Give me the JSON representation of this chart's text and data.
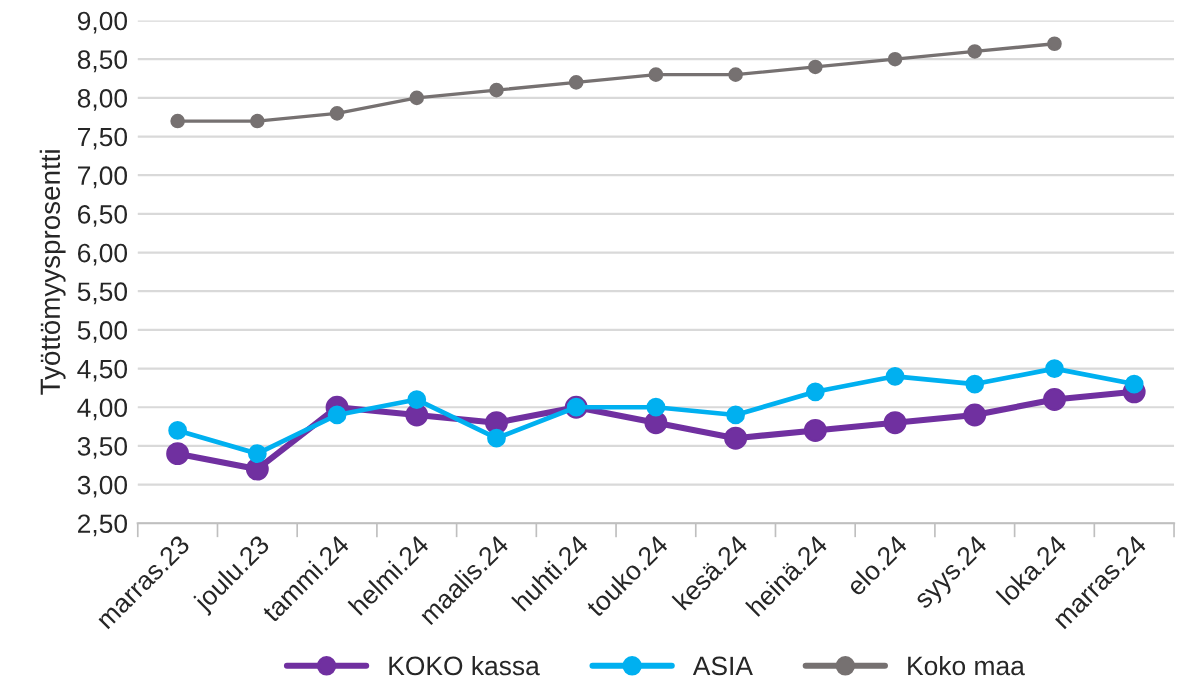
{
  "chart_data": {
    "type": "line",
    "ylabel": "Työttömyysprosentti",
    "categories": [
      "marras.23",
      "joulu.23",
      "tammi.24",
      "helmi.24",
      "maalis.24",
      "huhti.24",
      "touko.24",
      "kesä.24",
      "heinä.24",
      "elo.24",
      "syys.24",
      "loka.24",
      "marras.24"
    ],
    "series": [
      {
        "name": "KOKO kassa",
        "color": "#7030a0",
        "values": [
          3.4,
          3.2,
          4.0,
          3.9,
          3.8,
          4.0,
          3.8,
          3.6,
          3.7,
          3.8,
          3.9,
          4.1,
          4.2
        ]
      },
      {
        "name": "ASIA",
        "color": "#00b0f0",
        "values": [
          3.7,
          3.4,
          3.9,
          4.1,
          3.6,
          4.0,
          4.0,
          3.9,
          4.2,
          4.4,
          4.3,
          4.5,
          4.3
        ]
      },
      {
        "name": "Koko maa",
        "color": "#767171",
        "values": [
          7.7,
          7.7,
          7.8,
          8.0,
          8.1,
          8.2,
          8.3,
          8.3,
          8.4,
          8.5,
          8.6,
          8.7,
          null
        ]
      }
    ],
    "ylim": [
      2.5,
      9.0
    ],
    "yticks": [
      {
        "value": 2.5,
        "label": "2,50"
      },
      {
        "value": 3.0,
        "label": "3,00"
      },
      {
        "value": 3.5,
        "label": "3,50"
      },
      {
        "value": 4.0,
        "label": "4,00"
      },
      {
        "value": 4.5,
        "label": "4,50"
      },
      {
        "value": 5.0,
        "label": "5,00"
      },
      {
        "value": 5.5,
        "label": "5,50"
      },
      {
        "value": 6.0,
        "label": "6,00"
      },
      {
        "value": 6.5,
        "label": "6,50"
      },
      {
        "value": 7.0,
        "label": "7,00"
      },
      {
        "value": 7.5,
        "label": "7,50"
      },
      {
        "value": 8.0,
        "label": "8,00"
      },
      {
        "value": 8.5,
        "label": "8,50"
      },
      {
        "value": 9.0,
        "label": "9,00"
      }
    ],
    "grid": "y",
    "legend": "bottom",
    "marker": "circle",
    "line_style": "solid"
  }
}
